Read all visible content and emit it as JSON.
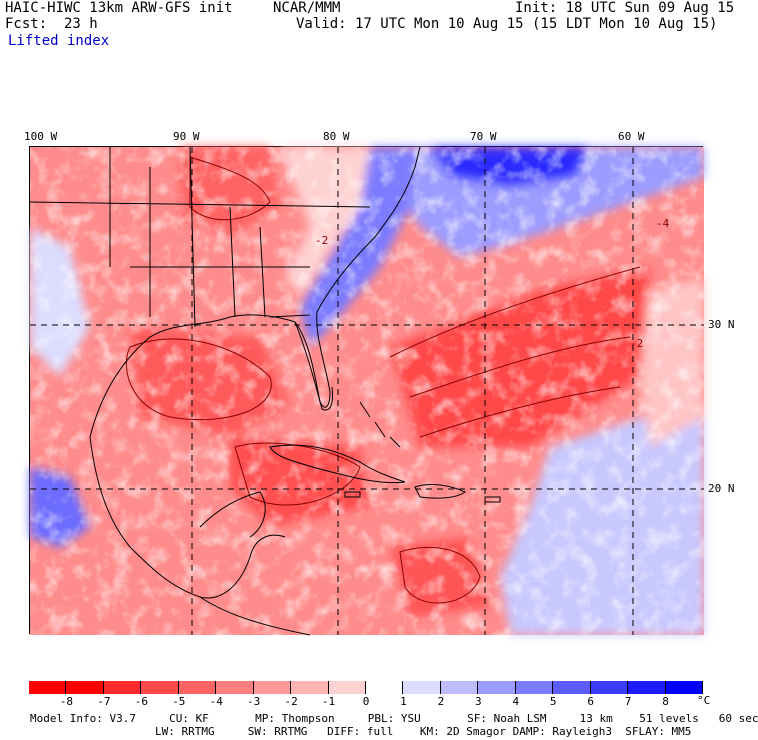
{
  "header": {
    "model": "HAIC-HIWC 13km ARW-GFS init",
    "org": "NCAR/MMM",
    "init": "Init: 18 UTC Sun 09 Aug 15",
    "fcst_label": "Fcst:",
    "fcst_value": "23 h",
    "valid": "Valid: 17 UTC Mon 10 Aug 15 (15 LDT Mon 10 Aug 15)",
    "field": "Lifted index"
  },
  "map": {
    "longitude_labels": [
      "100 W",
      "90 W",
      "80 W",
      "70 W",
      "60 W"
    ],
    "latitude_labels": [
      "30 N",
      "20 N"
    ],
    "contour_labels": [
      "-2",
      "-4",
      "-2"
    ]
  },
  "colorbar": {
    "levels": [
      "-8",
      "-7",
      "-6",
      "-5",
      "-4",
      "-3",
      "-2",
      "-1",
      "0",
      "1",
      "2",
      "3",
      "4",
      "5",
      "6",
      "7",
      "8"
    ],
    "unit": "°C",
    "colors": [
      "#ff0000",
      "#ff2a2a",
      "#ff4a4a",
      "#ff6464",
      "#ff7e7e",
      "#ff9898",
      "#ffb4b4",
      "#ffd2d2",
      "#ffffff",
      "#dcdcff",
      "#bcbcff",
      "#9c9cff",
      "#7c7cff",
      "#5c5cff",
      "#3c3cff",
      "#1c1cff",
      "#0000ff"
    ]
  },
  "footer": {
    "line1": "Model Info: V3.7     CU: KF       MP: Thompson     PBL: YSU       SF: Noah LSM     13 km    51 levels   60 sec",
    "line2": "LW: RRTMG     SW: RRTMG   DIFF: full    KM: 2D Smagor DAMP: Rayleigh3  SFLAY: MM5"
  }
}
